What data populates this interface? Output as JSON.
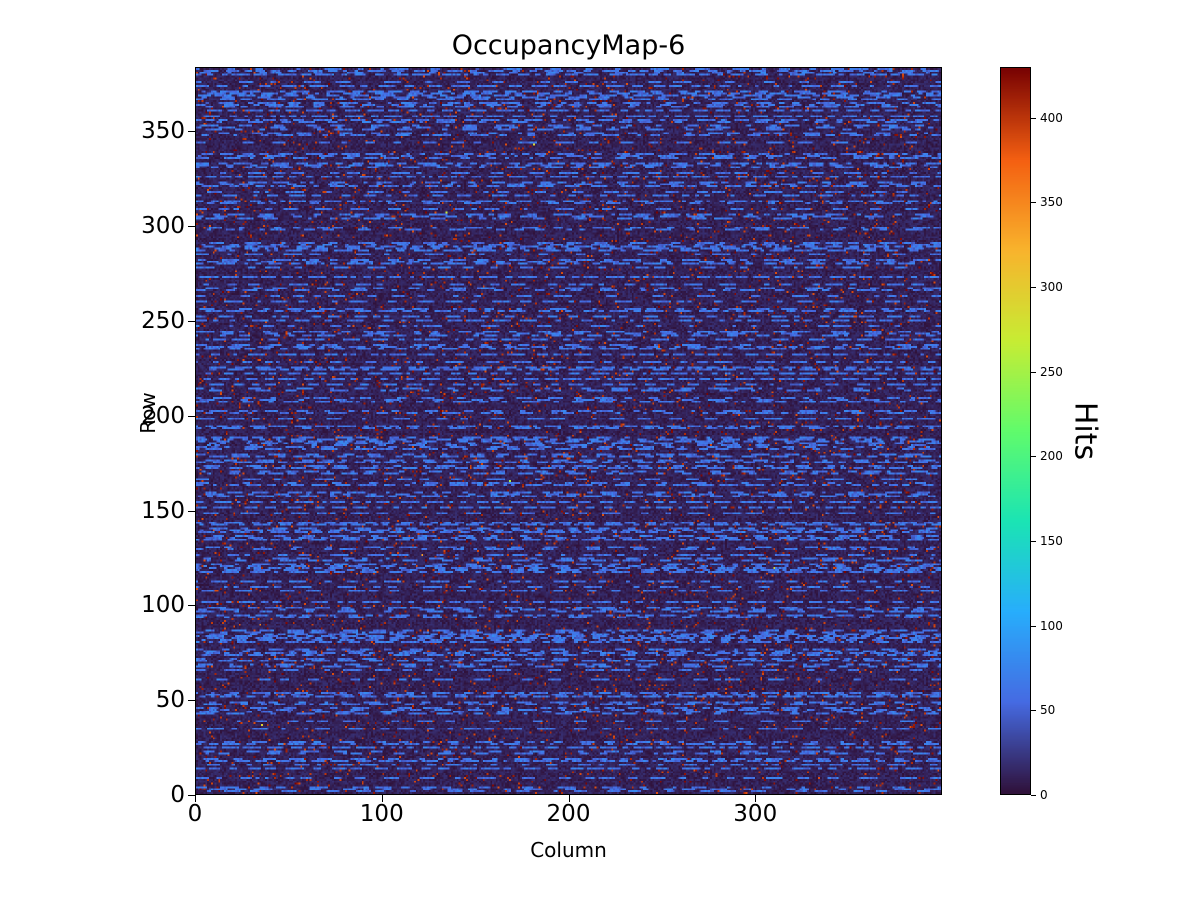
{
  "chart_data": {
    "type": "heatmap",
    "title": "OccupancyMap-6",
    "xlabel": "Column",
    "ylabel": "Row",
    "colorbar_label": "Hits",
    "colormap": "turbo",
    "grid": false,
    "legend": "none",
    "grid_shape_rows_cols": [
      384,
      400
    ],
    "x_range": [
      0,
      400
    ],
    "y_range": [
      0,
      384
    ],
    "value_range": [
      0,
      430
    ],
    "x_ticks": [
      0,
      100,
      200,
      300
    ],
    "y_ticks": [
      0,
      50,
      100,
      150,
      200,
      250,
      300,
      350
    ],
    "colorbar_ticks": [
      0,
      50,
      100,
      150,
      200,
      250,
      300,
      350,
      400
    ],
    "pattern": {
      "description": "Pixel-detector occupancy map: mostly near-zero dark background with sparse dark-red speckle pixels near the maximum, horizontal dashed light-blue streaks of roughly 40-80 hits on about half of the rows, and a few isolated bright orange hot pixels up to ~430 hits.",
      "seed": 6,
      "background_value_max": 18,
      "dark_speckle_probability": 0.035,
      "dark_speckle_value_range": [
        385,
        430
      ],
      "streak_row_probability": 0.48,
      "streak_value_range": [
        40,
        80
      ],
      "hot_pixel_probability": 8e-05,
      "hot_pixel_value_range": [
        250,
        430
      ]
    }
  }
}
